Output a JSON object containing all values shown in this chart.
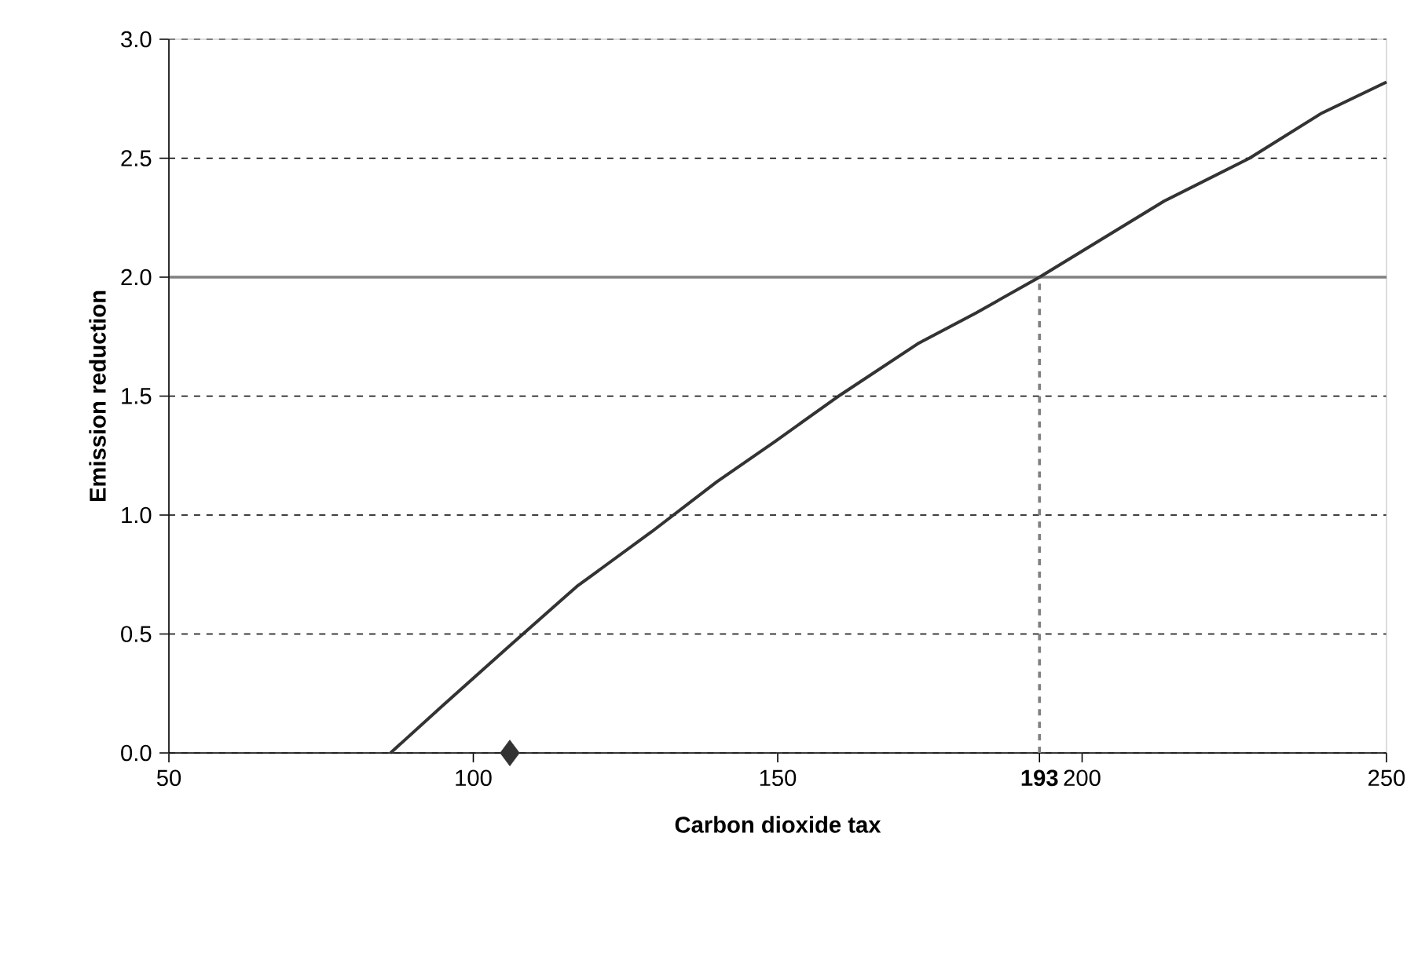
{
  "chart_data": {
    "type": "line",
    "xlabel": "Carbon dioxide tax",
    "ylabel": "Emission reduction",
    "xlim": [
      50,
      250
    ],
    "ylim": [
      0,
      3
    ],
    "xticks": [
      50,
      100,
      150,
      {
        "value": 193,
        "label": "**193**"
      },
      200,
      250
    ],
    "yticks": [
      {
        "value": 0,
        "label": "0.0"
      },
      0.5,
      {
        "value": 1,
        "label": "1.0"
      },
      1.5,
      {
        "value": 2,
        "label": "2.0"
      },
      2.5,
      {
        "value": 3,
        "label": "3.0"
      }
    ],
    "grid": "y",
    "series": [
      {
        "color": "#333333",
        "x": [
          86.4,
          95,
          105.5,
          117,
          129.3,
          140,
          149.6,
          160,
          173,
          182.6,
          193,
          213.5,
          227.5,
          239.4,
          250
        ],
        "values": [
          0,
          0.2,
          0.44,
          0.7,
          0.93,
          1.14,
          1.31,
          1.5,
          1.72,
          1.85,
          2.0,
          2.32,
          2.5,
          2.69,
          2.82
        ]
      },
      {
        "type": "line",
        "color": "#808080",
        "line_style": "dashed",
        "x": [
          193,
          193
        ],
        "values": [
          0,
          2
        ]
      },
      {
        "type": "scatter",
        "color": "#333333",
        "marker": "diamond",
        "x": [
          106
        ],
        "values": [
          0
        ]
      }
    ],
    "ref_lines": [
      {
        "axis": "y",
        "value": 2,
        "color": "#808080",
        "line_style": "solid"
      }
    ]
  }
}
